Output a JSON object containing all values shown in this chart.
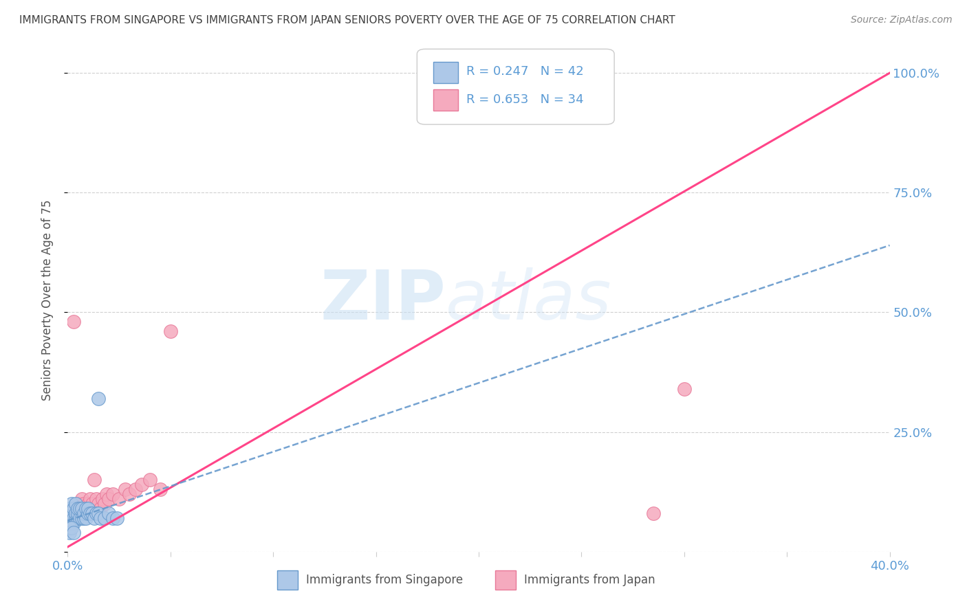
{
  "title": "IMMIGRANTS FROM SINGAPORE VS IMMIGRANTS FROM JAPAN SENIORS POVERTY OVER THE AGE OF 75 CORRELATION CHART",
  "source": "Source: ZipAtlas.com",
  "ylabel": "Seniors Poverty Over the Age of 75",
  "xlim": [
    0.0,
    0.4
  ],
  "ylim": [
    0.0,
    1.05
  ],
  "xticks": [
    0.0,
    0.05,
    0.1,
    0.15,
    0.2,
    0.25,
    0.3,
    0.35,
    0.4
  ],
  "ytick_positions": [
    0.0,
    0.25,
    0.5,
    0.75,
    1.0
  ],
  "ytick_labels": [
    "",
    "25.0%",
    "50.0%",
    "75.0%",
    "100.0%"
  ],
  "watermark_zip": "ZIP",
  "watermark_atlas": "atlas",
  "legend_r_singapore": "R = 0.247",
  "legend_n_singapore": "N = 42",
  "legend_r_japan": "R = 0.653",
  "legend_n_japan": "N = 34",
  "singapore_color": "#adc8e8",
  "japan_color": "#f5aabe",
  "singapore_edge_color": "#6699cc",
  "japan_edge_color": "#e87898",
  "singapore_trend_color": "#6699cc",
  "japan_trend_color": "#ff4488",
  "background_color": "#ffffff",
  "grid_color": "#d0d0d0",
  "title_color": "#404040",
  "tick_color": "#5b9bd5",
  "ylabel_color": "#555555",
  "source_color": "#888888",
  "legend_bottom_color": "#555555",
  "sg_x": [
    0.001,
    0.001,
    0.001,
    0.001,
    0.002,
    0.002,
    0.002,
    0.002,
    0.003,
    0.003,
    0.003,
    0.004,
    0.004,
    0.004,
    0.005,
    0.005,
    0.005,
    0.006,
    0.006,
    0.007,
    0.007,
    0.008,
    0.008,
    0.009,
    0.009,
    0.01,
    0.01,
    0.011,
    0.012,
    0.013,
    0.014,
    0.015,
    0.016,
    0.018,
    0.02,
    0.022,
    0.024,
    0.001,
    0.001,
    0.002,
    0.003,
    0.015
  ],
  "sg_y": [
    0.06,
    0.07,
    0.08,
    0.09,
    0.06,
    0.07,
    0.08,
    0.1,
    0.06,
    0.07,
    0.09,
    0.07,
    0.08,
    0.1,
    0.07,
    0.08,
    0.09,
    0.07,
    0.09,
    0.07,
    0.09,
    0.07,
    0.08,
    0.07,
    0.09,
    0.08,
    0.09,
    0.08,
    0.08,
    0.07,
    0.08,
    0.08,
    0.07,
    0.07,
    0.08,
    0.07,
    0.07,
    0.05,
    0.04,
    0.05,
    0.04,
    0.32
  ],
  "jp_x": [
    0.002,
    0.003,
    0.004,
    0.005,
    0.005,
    0.006,
    0.007,
    0.007,
    0.008,
    0.009,
    0.01,
    0.011,
    0.012,
    0.013,
    0.014,
    0.015,
    0.016,
    0.017,
    0.018,
    0.019,
    0.02,
    0.022,
    0.025,
    0.028,
    0.03,
    0.033,
    0.036,
    0.04,
    0.045,
    0.05,
    0.3,
    0.285,
    0.003,
    0.013
  ],
  "jp_y": [
    0.08,
    0.09,
    0.09,
    0.1,
    0.08,
    0.1,
    0.09,
    0.11,
    0.1,
    0.09,
    0.1,
    0.11,
    0.1,
    0.09,
    0.11,
    0.1,
    0.09,
    0.11,
    0.1,
    0.12,
    0.11,
    0.12,
    0.11,
    0.13,
    0.12,
    0.13,
    0.14,
    0.15,
    0.13,
    0.46,
    0.34,
    0.08,
    0.48,
    0.15
  ],
  "sg_trend_x": [
    0.0,
    0.4
  ],
  "sg_trend_y": [
    0.065,
    0.64
  ],
  "jp_trend_x": [
    0.0,
    0.4
  ],
  "jp_trend_y": [
    0.01,
    1.0
  ]
}
